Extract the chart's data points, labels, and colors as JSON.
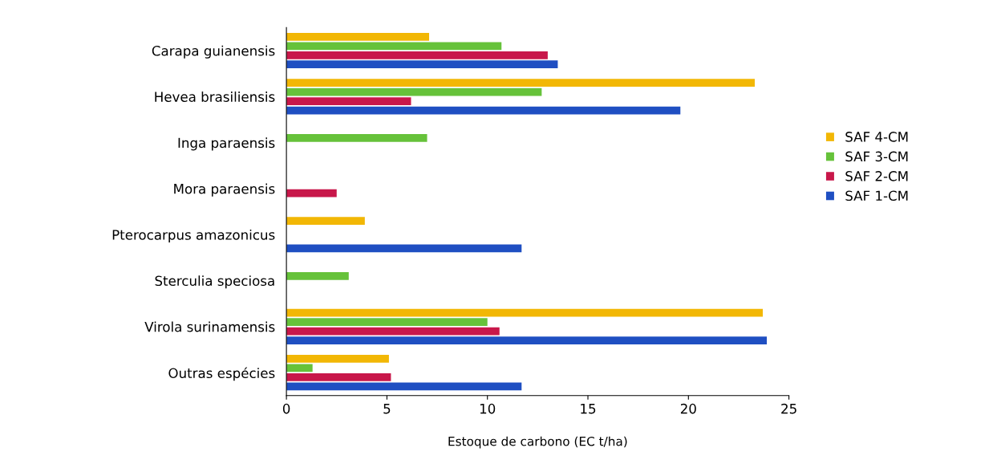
{
  "chart_data": {
    "type": "bar",
    "orientation": "horizontal",
    "xlabel": "Estoque de carbono (EC t/ha)",
    "categories": [
      "Carapa guianensis",
      "Hevea brasiliensis",
      "Inga paraensis",
      "Mora paraensis",
      "Pterocarpus amazonicus",
      "Sterculia speciosa",
      "Virola surinamensis",
      "Outras espécies"
    ],
    "series": [
      {
        "name": "SAF 4-CM",
        "color": "#f2b705",
        "values": [
          7.1,
          23.3,
          null,
          null,
          3.9,
          null,
          23.7,
          5.1
        ]
      },
      {
        "name": "SAF 3-CM",
        "color": "#66c23a",
        "values": [
          10.7,
          12.7,
          7.0,
          null,
          null,
          3.1,
          10.0,
          1.3
        ]
      },
      {
        "name": "SAF 2-CM",
        "color": "#c8174a",
        "values": [
          13.0,
          6.2,
          null,
          2.5,
          null,
          null,
          10.6,
          5.2
        ]
      },
      {
        "name": "SAF 1-CM",
        "color": "#1f4fc2",
        "values": [
          13.5,
          19.6,
          null,
          null,
          11.7,
          null,
          23.9,
          11.7
        ]
      }
    ],
    "xlim": [
      0,
      25
    ],
    "xticks": [
      0,
      5,
      10,
      15,
      20,
      25
    ],
    "grid": false,
    "legend": "right"
  }
}
